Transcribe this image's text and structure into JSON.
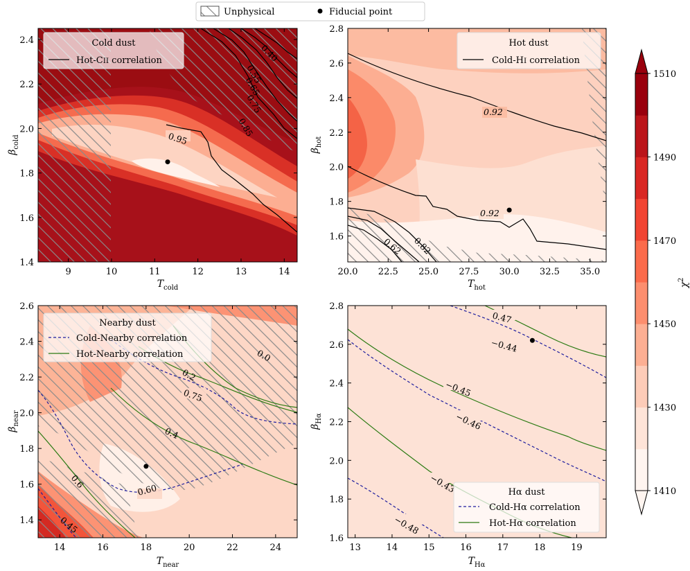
{
  "legend": {
    "unphysical": "Unphysical",
    "fiducial": "Fiducial point"
  },
  "colorbar": {
    "label": "χ",
    "label_sup": "2",
    "ticks": [
      "1410",
      "1430",
      "1450",
      "1470",
      "1490",
      "1510"
    ],
    "levels": [
      1410,
      1420,
      1430,
      1440,
      1450,
      1460,
      1470,
      1480,
      1490,
      1500,
      1510
    ],
    "colors": [
      "#fff5f0",
      "#fee4d8",
      "#fdccb8",
      "#fcaf93",
      "#fc8e6e",
      "#fb6b4b",
      "#f14432",
      "#d92723",
      "#bb151a",
      "#99000d"
    ]
  },
  "chart_data": [
    {
      "id": "cold",
      "type": "contour",
      "title": "Cold dust",
      "legend": [
        {
          "style": "solid",
          "color": "#000000",
          "label_main": "Hot-C",
          "label_ion": "II",
          "label_rest": " correlation"
        }
      ],
      "xlabel_main": "T",
      "xlabel_sub": "cold",
      "ylabel_main": "β",
      "ylabel_sub": "cold",
      "xlim": [
        8.3,
        14.3
      ],
      "ylim": [
        1.4,
        2.45
      ],
      "xticks": [
        "9",
        "10",
        "11",
        "12",
        "13",
        "14"
      ],
      "yticks": [
        "1.4",
        "1.6",
        "1.8",
        "2.0",
        "2.2",
        "2.4"
      ],
      "fiducial": [
        11.3,
        1.85
      ],
      "contour_labels": [
        "0.95",
        "0.85",
        "0.75",
        "0.65",
        "0.55",
        "0.40"
      ]
    },
    {
      "id": "hot",
      "type": "contour",
      "title": "Hot dust",
      "legend": [
        {
          "style": "solid",
          "color": "#000000",
          "label_main": "Cold-H",
          "label_ion": "I",
          "label_rest": " correlation"
        }
      ],
      "xlabel_main": "T",
      "xlabel_sub": "hot",
      "ylabel_main": "β",
      "ylabel_sub": "hot",
      "xlim": [
        20,
        36
      ],
      "ylim": [
        1.45,
        2.8
      ],
      "xticks": [
        "20.0",
        "22.5",
        "25.0",
        "27.5",
        "30.0",
        "32.5",
        "35.0"
      ],
      "yticks": [
        "1.6",
        "1.8",
        "2.0",
        "2.2",
        "2.4",
        "2.6",
        "2.8"
      ],
      "fiducial": [
        30.0,
        1.75
      ],
      "contour_labels": [
        "0.92",
        "0.92",
        "0.82",
        "0.62"
      ]
    },
    {
      "id": "near",
      "type": "contour",
      "title": "Nearby dust",
      "legend": [
        {
          "style": "dashed",
          "color": "#1d1d9e",
          "label_main": "Cold-Nearby correlation",
          "label_ion": "",
          "label_rest": ""
        },
        {
          "style": "solid",
          "color": "#2a7a12",
          "label_main": "Hot-Nearby correlation",
          "label_ion": "",
          "label_rest": ""
        }
      ],
      "xlabel_main": "T",
      "xlabel_sub": "near",
      "ylabel_main": "β",
      "ylabel_sub": "near",
      "xlim": [
        13,
        25
      ],
      "ylim": [
        1.3,
        2.6
      ],
      "xticks": [
        "14",
        "16",
        "18",
        "20",
        "22",
        "24"
      ],
      "yticks": [
        "1.4",
        "1.6",
        "1.8",
        "2.0",
        "2.2",
        "2.4",
        "2.6"
      ],
      "fiducial": [
        18.0,
        1.7
      ],
      "contour_labels": [
        "0.75",
        "0.60",
        "0.45",
        "0.0",
        "0.2",
        "0.4",
        "0.6"
      ]
    },
    {
      "id": "ha",
      "type": "contour",
      "title": "Hα dust",
      "legend": [
        {
          "style": "dashed",
          "color": "#1d1d9e",
          "label_main": "Cold-Hα correlation",
          "label_ion": "",
          "label_rest": ""
        },
        {
          "style": "solid",
          "color": "#2a7a12",
          "label_main": "Hot-Hα correlation",
          "label_ion": "",
          "label_rest": ""
        }
      ],
      "xlabel_main": "T",
      "xlabel_sub": "Hα",
      "ylabel_main": "β",
      "ylabel_sub": "Hα",
      "xlim": [
        12.8,
        19.8
      ],
      "ylim": [
        1.6,
        2.8
      ],
      "xticks": [
        "13",
        "14",
        "15",
        "16",
        "17",
        "18",
        "19"
      ],
      "yticks": [
        "1.6",
        "1.8",
        "2.0",
        "2.2",
        "2.4",
        "2.6",
        "2.8"
      ],
      "fiducial": [
        17.8,
        2.62
      ],
      "contour_labels": [
        "−0.44",
        "−0.46",
        "−0.48",
        "0.47",
        "−0.45",
        "−0.43"
      ]
    }
  ]
}
